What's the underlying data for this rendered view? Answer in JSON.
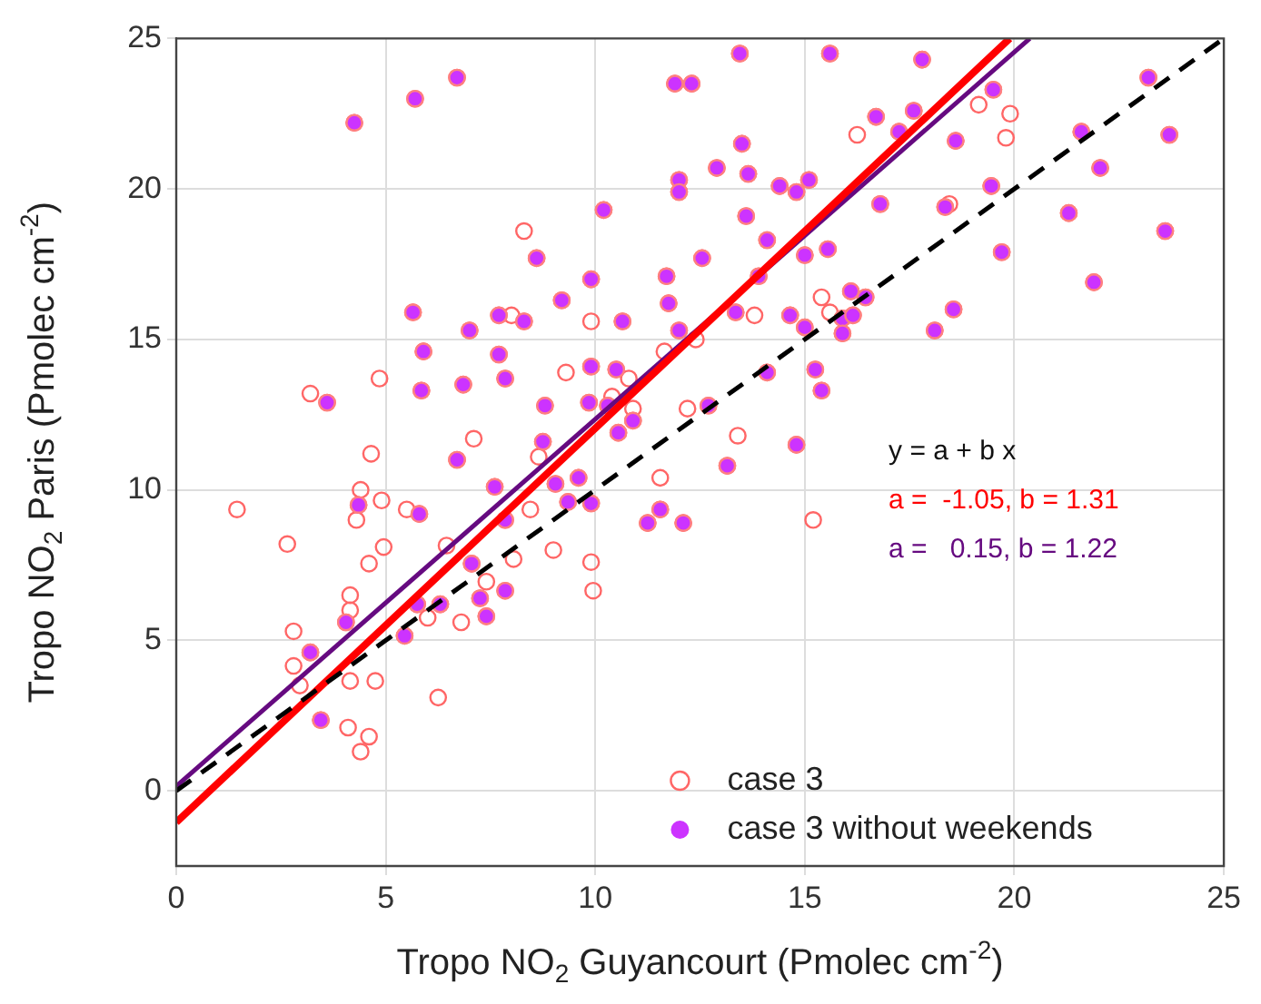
{
  "chart_data": {
    "type": "scatter",
    "xlabel": "Tropo NO$_{2}$ Guyancourt (Pmolec cm$^{-2}$)",
    "ylabel": "Tropo NO$_{2}$ Paris (Pmolec cm$^{-2}$)",
    "xlim": [
      0,
      25
    ],
    "ylim": [
      -2.5,
      25
    ],
    "xticks": [
      0,
      5,
      10,
      15,
      20,
      25
    ],
    "yticks": [
      0,
      5,
      10,
      15,
      20,
      25
    ],
    "grid": true,
    "legend": "bottom right",
    "annotations": [
      "y = a + b x",
      "a =  -1.05, b = 1.31",
      "a =   0.15, b = 1.22"
    ],
    "series": [
      {
        "name": "case 3",
        "color": "#ff6666",
        "marker": "circle",
        "x": [
          8.3,
          8.0,
          3.2,
          4.85,
          7.1,
          4.65,
          16.25,
          9.9,
          13.8,
          15.4,
          15.6,
          11.65,
          12.4,
          9.3,
          10.8,
          10.4,
          10.9,
          12.2,
          13.4,
          11.55,
          8.65,
          19.15,
          19.9,
          19.8,
          18.45,
          1.45,
          4.4,
          4.9,
          4.3,
          5.5,
          2.65,
          4.95,
          4.6,
          6.45,
          4.15,
          4.15,
          2.8,
          2.8,
          2.95,
          4.15,
          4.75,
          4.1,
          4.6,
          4.4,
          6.25,
          6.8,
          6.0,
          8.05,
          8.45,
          7.4,
          9.0,
          9.9,
          9.95,
          15.2,
          4.25,
          5.7,
          6.7,
          5.65,
          7.0,
          7.7,
          8.3,
          5.9,
          7.7,
          5.85,
          6.85,
          7.85,
          3.6,
          6.7,
          8.6,
          13.45,
          15.6,
          11.9,
          12.3,
          16.7,
          13.5,
          12.9,
          13.65,
          12.0,
          12.0,
          14.4,
          14.8,
          15.1,
          10.2,
          13.6,
          16.8,
          14.1,
          12.55,
          15.0,
          15.55,
          9.9,
          11.7,
          13.9,
          9.2,
          11.75,
          16.1,
          16.45,
          10.65,
          13.35,
          14.65,
          15.0,
          15.9,
          16.15,
          15.9,
          12.0,
          9.9,
          10.5,
          14.1,
          15.25,
          15.4,
          9.85,
          8.8,
          10.3,
          10.9,
          10.55,
          12.7,
          8.75,
          14.8,
          9.05,
          9.6,
          13.15,
          17.8,
          19.5,
          17.6,
          17.25,
          18.6,
          23.2,
          21.6,
          23.7,
          22.05,
          19.45,
          18.35,
          21.3,
          23.6,
          19.7,
          21.9,
          18.55,
          18.1,
          4.35,
          5.8,
          7.6,
          7.85,
          7.05,
          7.85,
          7.25,
          7.4,
          6.3,
          5.75,
          5.45,
          4.05,
          3.2,
          3.45,
          9.35,
          9.9,
          11.55,
          11.25,
          12.1
        ],
        "values": [
          18.6,
          15.8,
          13.2,
          13.7,
          11.7,
          11.2,
          21.8,
          15.6,
          15.8,
          16.4,
          15.9,
          14.6,
          15.0,
          13.9,
          13.7,
          13.1,
          12.7,
          12.7,
          11.8,
          10.4,
          11.1,
          22.8,
          22.5,
          21.7,
          19.5,
          9.35,
          10.0,
          9.65,
          9.0,
          9.35,
          8.2,
          8.1,
          7.55,
          8.15,
          6.5,
          6.0,
          5.3,
          4.15,
          3.5,
          3.65,
          3.65,
          2.1,
          1.8,
          1.3,
          3.1,
          5.6,
          5.75,
          7.7,
          9.35,
          6.95,
          8.0,
          7.6,
          6.65,
          9.0,
          22.2,
          23.0,
          23.7,
          15.9,
          15.3,
          15.8,
          15.6,
          14.6,
          14.5,
          13.3,
          13.5,
          13.7,
          12.9,
          11.0,
          17.7,
          24.5,
          24.5,
          23.5,
          23.5,
          22.4,
          21.5,
          20.7,
          20.5,
          20.3,
          19.9,
          20.1,
          19.9,
          20.3,
          19.3,
          19.1,
          19.5,
          18.3,
          17.7,
          17.8,
          18.0,
          17.0,
          17.1,
          17.1,
          16.3,
          16.2,
          16.6,
          16.4,
          15.6,
          15.9,
          15.8,
          15.4,
          15.7,
          15.8,
          15.2,
          15.3,
          14.1,
          14.0,
          13.9,
          14.0,
          13.3,
          12.9,
          12.8,
          12.8,
          12.3,
          11.9,
          12.8,
          11.6,
          11.5,
          10.2,
          10.4,
          10.8,
          24.3,
          23.3,
          22.6,
          21.9,
          21.6,
          23.7,
          21.9,
          21.8,
          20.7,
          20.1,
          19.4,
          19.2,
          18.6,
          17.9,
          16.9,
          16.0,
          15.3,
          9.5,
          9.2,
          10.1,
          9.0,
          7.55,
          6.65,
          6.4,
          5.8,
          6.2,
          6.2,
          5.15,
          5.6,
          4.6,
          2.35,
          9.6,
          9.55,
          9.35,
          8.9,
          8.9
        ]
      },
      {
        "name": "case 3 without weekends",
        "color": "#cc33ff",
        "marker": "circle",
        "x": [
          4.25,
          5.7,
          6.7,
          5.65,
          7.0,
          7.7,
          8.3,
          5.9,
          7.7,
          5.85,
          6.85,
          7.85,
          3.6,
          6.7,
          8.6,
          13.45,
          15.6,
          11.9,
          12.3,
          16.7,
          13.5,
          12.9,
          13.65,
          12.0,
          12.0,
          14.4,
          14.8,
          15.1,
          10.2,
          13.6,
          16.8,
          14.1,
          12.55,
          15.0,
          15.55,
          9.9,
          11.7,
          13.9,
          9.2,
          11.75,
          16.1,
          16.45,
          10.65,
          13.35,
          14.65,
          15.0,
          15.9,
          16.15,
          15.9,
          12.0,
          9.9,
          10.5,
          14.1,
          15.25,
          15.4,
          9.85,
          8.8,
          10.3,
          10.9,
          10.55,
          12.7,
          8.75,
          14.8,
          9.05,
          9.6,
          13.15,
          17.8,
          19.5,
          17.6,
          17.25,
          18.6,
          23.2,
          21.6,
          23.7,
          22.05,
          19.45,
          18.35,
          21.3,
          23.6,
          19.7,
          21.9,
          18.55,
          18.1,
          4.35,
          5.8,
          7.6,
          7.85,
          7.05,
          7.85,
          7.25,
          7.4,
          6.3,
          5.75,
          5.45,
          4.05,
          3.2,
          3.45,
          9.35,
          9.9,
          11.55,
          11.25,
          12.1
        ],
        "values": [
          22.2,
          23.0,
          23.7,
          15.9,
          15.3,
          15.8,
          15.6,
          14.6,
          14.5,
          13.3,
          13.5,
          13.7,
          12.9,
          11.0,
          17.7,
          24.5,
          24.5,
          23.5,
          23.5,
          22.4,
          21.5,
          20.7,
          20.5,
          20.3,
          19.9,
          20.1,
          19.9,
          20.3,
          19.3,
          19.1,
          19.5,
          18.3,
          17.7,
          17.8,
          18.0,
          17.0,
          17.1,
          17.1,
          16.3,
          16.2,
          16.6,
          16.4,
          15.6,
          15.9,
          15.8,
          15.4,
          15.7,
          15.8,
          15.2,
          15.3,
          14.1,
          14.0,
          13.9,
          14.0,
          13.3,
          12.9,
          12.8,
          12.8,
          12.3,
          11.9,
          12.8,
          11.6,
          11.5,
          10.2,
          10.4,
          10.8,
          24.3,
          23.3,
          22.6,
          21.9,
          21.6,
          23.7,
          21.9,
          21.8,
          20.7,
          20.1,
          19.4,
          19.2,
          18.6,
          17.9,
          16.9,
          16.0,
          15.3,
          9.5,
          9.2,
          10.1,
          9.0,
          7.55,
          6.65,
          6.4,
          5.8,
          6.2,
          6.2,
          5.15,
          5.6,
          4.6,
          2.35,
          9.6,
          9.55,
          9.35,
          8.9,
          8.9
        ]
      },
      {
        "type": "line",
        "color": "#000000",
        "line_style": "dashed",
        "marker": "none",
        "x": [
          0,
          25
        ],
        "values": [
          0,
          25
        ]
      },
      {
        "type": "line",
        "color": "#ff0000",
        "line_style": "solid",
        "marker": "none",
        "x": [
          0,
          19.89
        ],
        "values": [
          -1.05,
          25
        ]
      },
      {
        "type": "line",
        "color": "#660a80",
        "line_style": "solid",
        "marker": "none",
        "x": [
          0,
          20.37
        ],
        "values": [
          0.15,
          25
        ]
      }
    ]
  }
}
